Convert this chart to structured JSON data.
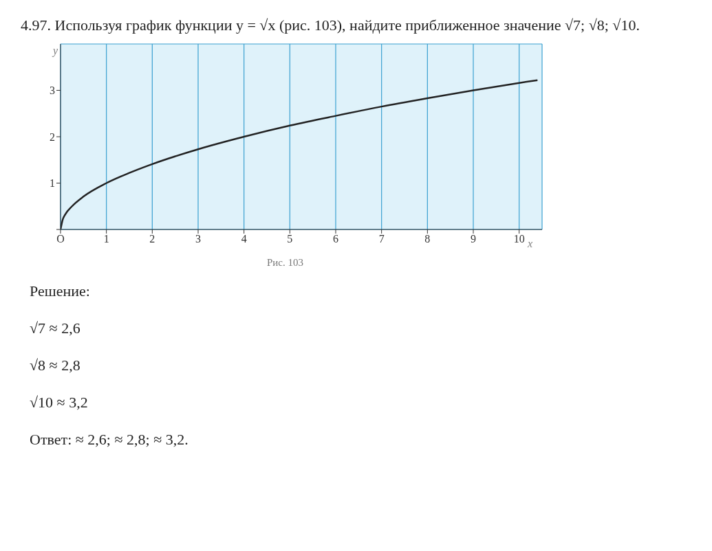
{
  "chart_data": {
    "type": "line",
    "title": "4.97. Используя график функции y = √x (рис. 103), найдите приближенное значение √7; √8; √10.",
    "xlabel": "x",
    "ylabel": "y",
    "x": [
      0,
      0.05,
      0.1,
      0.25,
      0.5,
      1,
      1.5,
      2,
      3,
      4,
      5,
      6,
      7,
      8,
      9,
      10,
      10.4
    ],
    "series": [
      {
        "color": "#222222",
        "values": [
          0,
          0.22,
          0.32,
          0.5,
          0.71,
          1,
          1.22,
          1.41,
          1.73,
          2,
          2.24,
          2.45,
          2.65,
          2.83,
          3,
          3.16,
          3.22
        ]
      }
    ],
    "xlim": [
      0,
      10.5
    ],
    "ylim": [
      0,
      4
    ],
    "xticks": [
      {
        "value": 0,
        "label": "O"
      },
      1,
      2,
      3,
      4,
      5,
      6,
      7,
      8,
      9,
      10
    ],
    "yticks": [
      {
        "value": 0,
        "label": null
      },
      1,
      2,
      3
    ],
    "grid": true,
    "annotations": [
      "Рис. 103",
      "Решение:",
      "√7 ≈ 2,6",
      "√8 ≈ 2,8",
      "√10 ≈ 3,2",
      "Ответ: ≈ 2,6; ≈ 2,8; ≈ 3,2."
    ]
  }
}
